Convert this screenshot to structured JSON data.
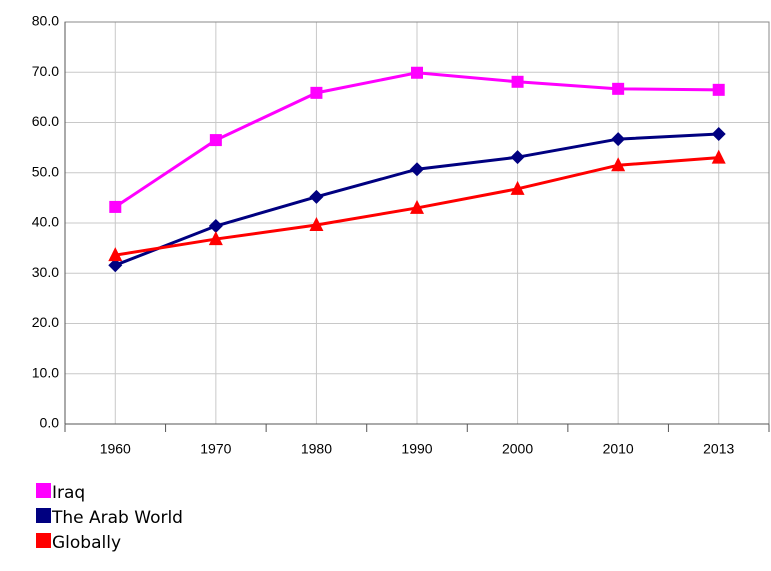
{
  "chart_data": {
    "type": "line",
    "categories": [
      "1960",
      "1970",
      "1980",
      "1990",
      "2000",
      "2010",
      "2013"
    ],
    "series": [
      {
        "name": "Iraq",
        "color": "#ff00ff",
        "marker": "square",
        "values": [
          43.2,
          56.5,
          65.9,
          69.9,
          68.1,
          66.7,
          66.5
        ]
      },
      {
        "name": "The Arab World",
        "color": "#000080",
        "marker": "diamond",
        "values": [
          31.6,
          39.4,
          45.2,
          50.7,
          53.1,
          56.7,
          57.7
        ]
      },
      {
        "name": "Globally",
        "color": "#ff0000",
        "marker": "triangle",
        "values": [
          33.6,
          36.8,
          39.6,
          43.0,
          46.8,
          51.5,
          53.0
        ]
      }
    ],
    "ylim": [
      0,
      80
    ],
    "yticks": [
      {
        "value": 0,
        "label": "0.0"
      },
      {
        "value": 10,
        "label": "10.0"
      },
      {
        "value": 20,
        "label": "20.0"
      },
      {
        "value": 30,
        "label": "30.0"
      },
      {
        "value": 40,
        "label": "40.0"
      },
      {
        "value": 50,
        "label": "50.0"
      },
      {
        "value": 60,
        "label": "60.0"
      },
      {
        "value": 70,
        "label": "70.0"
      },
      {
        "value": 80,
        "label": "80.0"
      }
    ],
    "grid": true
  }
}
